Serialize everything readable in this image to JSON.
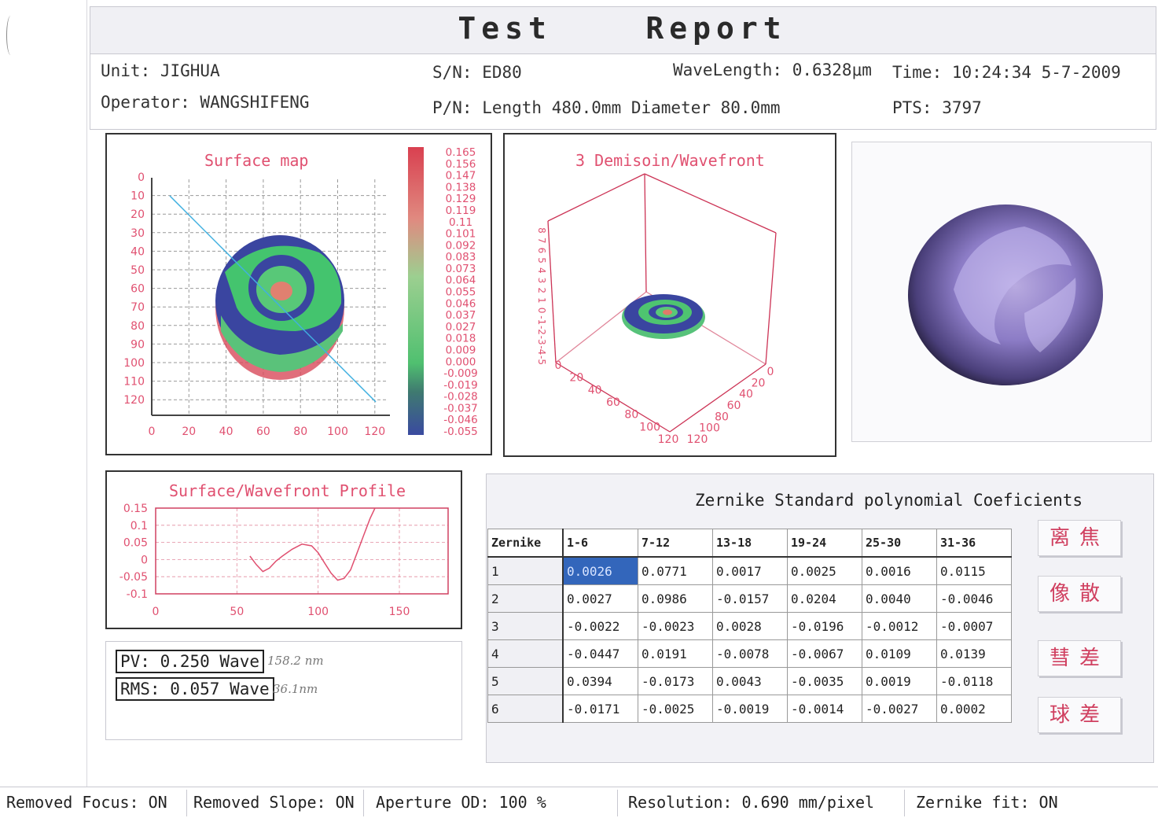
{
  "header": {
    "title": "Test    Report"
  },
  "info": {
    "unit": "Unit: JIGHUA",
    "operator": "Operator: WANGSHIFENG",
    "sn": "S/N: ED80",
    "pn": "P/N: Length 480.0mm  Diameter 80.0mm",
    "wavelength": "WaveLength: 0.6328μm",
    "time": "Time: 10:24:34 5-7-2009",
    "pts": "PTS: 3797"
  },
  "surface_map": {
    "title": "Surface map",
    "y_ticks": [
      "0",
      "10",
      "20",
      "30",
      "40",
      "50",
      "60",
      "70",
      "80",
      "90",
      "100",
      "110",
      "120"
    ],
    "x_ticks": [
      "0",
      "20",
      "40",
      "60",
      "80",
      "100",
      "120"
    ],
    "colorbar_labels": [
      "0.165",
      "0.156",
      "0.147",
      "0.138",
      "0.129",
      "0.119",
      "0.11",
      "0.101",
      "0.092",
      "0.083",
      "0.073",
      "0.064",
      "0.055",
      "0.046",
      "0.037",
      "0.027",
      "0.018",
      "0.009",
      "0.000",
      "-0.009",
      "-0.019",
      "-0.028",
      "-0.037",
      "-0.046",
      "-0.055"
    ]
  },
  "wavefront_3d": {
    "title": "3 Demisoin/Wavefront",
    "z_ticks": [
      "8",
      "7",
      "6",
      "5",
      "4",
      "3",
      "2",
      "1",
      "0",
      "-1",
      "-2",
      "-3",
      "-4",
      "-5"
    ],
    "x_ticks": [
      "0",
      "20",
      "40",
      "60",
      "80",
      "100",
      "120"
    ],
    "y_ticks": [
      "0",
      "20",
      "40",
      "60",
      "80",
      "100",
      "120"
    ]
  },
  "profile": {
    "title": "Surface/Wavefront Profile",
    "y_ticks": [
      "0.15",
      "0.1",
      "0.05",
      "0",
      "-0.05",
      "-0.1"
    ],
    "x_ticks": [
      "0",
      "50",
      "100",
      "150"
    ]
  },
  "chart_data": {
    "type": "line",
    "title": "Surface/Wavefront Profile",
    "xlabel": "",
    "ylabel": "",
    "xlim": [
      0,
      180
    ],
    "ylim": [
      -0.1,
      0.15
    ],
    "x": [
      58,
      62,
      66,
      70,
      74,
      78,
      84,
      90,
      96,
      100,
      104,
      108,
      112,
      116,
      120,
      124,
      128,
      132,
      135
    ],
    "values": [
      0.01,
      -0.015,
      -0.035,
      -0.025,
      -0.005,
      0.01,
      0.03,
      0.045,
      0.04,
      0.02,
      -0.01,
      -0.04,
      -0.06,
      -0.055,
      -0.03,
      0.02,
      0.07,
      0.12,
      0.15
    ]
  },
  "metrics": {
    "pv": "PV: 0.250 Wave",
    "rms": "RMS: 0.057 Wave",
    "pv_note": "158.2 nm",
    "rms_note": "36.1nm"
  },
  "zernike": {
    "title": "Zernike Standard polynomial Coeficients",
    "headers": [
      "Zernike",
      "1-6",
      "7-12",
      "13-18",
      "19-24",
      "25-30",
      "31-36"
    ],
    "rows": [
      [
        "1",
        "0.0026",
        "0.0771",
        "0.0017",
        "0.0025",
        "0.0016",
        "0.0115"
      ],
      [
        "2",
        "0.0027",
        "0.0986",
        "-0.0157",
        "0.0204",
        "0.0040",
        "-0.0046"
      ],
      [
        "3",
        "-0.0022",
        "-0.0023",
        "0.0028",
        "-0.0196",
        "-0.0012",
        "-0.0007"
      ],
      [
        "4",
        "-0.0447",
        "0.0191",
        "-0.0078",
        "-0.0067",
        "0.0109",
        "0.0139"
      ],
      [
        "5",
        "0.0394",
        "-0.0173",
        "0.0043",
        "-0.0035",
        "0.0019",
        "-0.0118"
      ],
      [
        "6",
        "-0.0171",
        "-0.0025",
        "-0.0019",
        "-0.0014",
        "-0.0027",
        "0.0002"
      ]
    ]
  },
  "buttons": {
    "defocus": "离焦",
    "astigmatism": "像散",
    "coma": "彗差",
    "spherical": "球差"
  },
  "status": {
    "removed_focus": "Removed Focus: ON",
    "removed_slope": "Removed Slope: ON",
    "aperture": "Aperture OD: 100  %",
    "resolution": "Resolution: 0.690 mm/pixel",
    "zernike_fit": "Zernike fit: ON"
  },
  "colors": {
    "accent": "#e05070",
    "selected": "#3366bb"
  }
}
